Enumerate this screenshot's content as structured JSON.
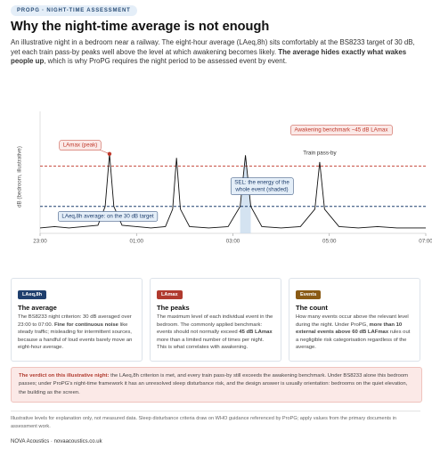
{
  "badge": "PROPG · NIGHT-TIME ASSESSMENT",
  "title": "Why the night-time average is not enough",
  "intro": {
    "before": "An illustrative night in a bedroom near a railway. The eight-hour average (LAeq,8h) sits comfortably at the BS8233 target of 30 dB, yet each train pass-by peaks well above the level at which awakening becomes likely. ",
    "bold": "The average hides exactly what wakes people up",
    "after": ", which is why ProPG requires the night period to be assessed event by event."
  },
  "chart_data": {
    "type": "line",
    "y_label": "dB (bedroom, illustrative)",
    "x": [
      0,
      0.3,
      0.6,
      0.9,
      1.2,
      1.35,
      1.44,
      1.53,
      1.7,
      2.0,
      2.3,
      2.6,
      2.75,
      2.83,
      2.91,
      3.1,
      3.5,
      3.9,
      4.15,
      4.26,
      4.37,
      4.6,
      5.0,
      5.4,
      5.7,
      5.8,
      5.9,
      6.2,
      6.6,
      7.0,
      7.4,
      7.8,
      8.0
    ],
    "values": [
      22,
      22.5,
      22,
      22.5,
      23,
      30,
      49.5,
      30,
      23,
      22.5,
      22,
      22.5,
      29,
      48,
      29,
      22.5,
      22,
      22.5,
      30,
      49,
      30,
      22.5,
      22,
      22.5,
      29,
      46.5,
      29,
      22.5,
      22,
      22.5,
      22,
      22,
      22
    ],
    "color": "#111111",
    "xlim": [
      0,
      8
    ],
    "xticks": [
      {
        "value": 0,
        "label": "23:00"
      },
      {
        "value": 2,
        "label": "01:00"
      },
      {
        "value": 4,
        "label": "03:00"
      },
      {
        "value": 6,
        "label": "05:00"
      },
      {
        "value": 8,
        "label": "07:00"
      }
    ],
    "ylim": [
      20,
      62
    ],
    "reference_lines": [
      {
        "value": 45,
        "color": "#c0392b",
        "label": "Awakening benchmark ~45 dB LAmax"
      },
      {
        "value": 30,
        "color": "#1f3f6e",
        "label": "LAeq,8h average: on the 30 dB target"
      }
    ],
    "peak_label": "LAmax (peak)",
    "pass_by_label": "Train pass-by",
    "sel_label": [
      "SEL: the energy of the",
      "whole event (shaded)"
    ],
    "shade_color": "#c9dcee"
  },
  "cards": [
    {
      "tag": "LAeq,8h",
      "heading": "The average",
      "before": "The BS8233 night criterion: 30 dB averaged over 23:00 to 07:00. ",
      "bold": "Fine for continuous noise",
      "after": " like steady traffic; misleading for intermittent sources, because a handful of loud events barely move an eight-hour average."
    },
    {
      "tag": "LAmax",
      "heading": "The peaks",
      "before": "The maximum level of each individual event in the bedroom. The commonly applied benchmark: events should not normally exceed ",
      "bold": "45 dB LAmax",
      "after": " more than a limited number of times per night. This is what correlates with awakening."
    },
    {
      "tag": "Events",
      "heading": "The count",
      "before": "How many events occur above the relevant level during the night. Under ProPG, ",
      "bold": "more than 10 external events above 60 dB LAFmax",
      "after": " rules out a negligible risk categorisation regardless of the average."
    }
  ],
  "verdict": {
    "bold": "The verdict on this illustrative night:",
    "after": " the LAeq,8h criterion is met, and every train pass-by still exceeds the awakening benchmark. Under BS8233 alone this bedroom passes; under ProPG's night-time framework it has an unresolved sleep disturbance risk, and the design answer is usually orientation: bedrooms on the quiet elevation, the building as the screen."
  },
  "footnote": "Illustrative levels for explanation only, not measured data. Sleep disturbance criteria draw on WHO guidance referenced by ProPG; apply values from the primary documents in assessment work.",
  "footer": "NOVA Acoustics · novaacoustics.co.uk"
}
